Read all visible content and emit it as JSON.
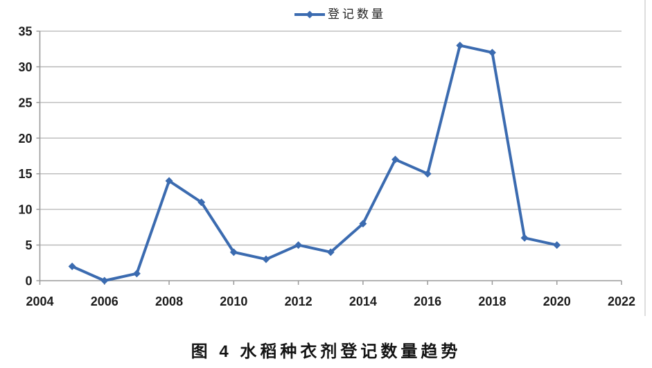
{
  "figure": {
    "caption": "图 4 水稻种衣剂登记数量趋势",
    "legend_label": "登记数量"
  },
  "colors": {
    "line": "#3b6bb0",
    "grid": "#b3b3b3",
    "axis": "#9a9a9a",
    "text": "#1c1c1c"
  },
  "chart_data": {
    "type": "line",
    "title": "图 4 水稻种衣剂登记数量趋势",
    "legend": [
      "登记数量"
    ],
    "x": [
      2005,
      2006,
      2007,
      2008,
      2009,
      2010,
      2011,
      2012,
      2013,
      2014,
      2015,
      2016,
      2017,
      2018,
      2019,
      2020
    ],
    "series": [
      {
        "name": "登记数量",
        "values": [
          2,
          0,
          1,
          14,
          11,
          4,
          3,
          5,
          4,
          8,
          17,
          15,
          33,
          32,
          6,
          5
        ]
      }
    ],
    "xlabel": "",
    "ylabel": "",
    "xlim": [
      2004,
      2022
    ],
    "ylim": [
      0,
      35
    ],
    "x_ticks": [
      2004,
      2006,
      2008,
      2010,
      2012,
      2014,
      2016,
      2018,
      2020,
      2022
    ],
    "y_ticks": [
      0,
      5,
      10,
      15,
      20,
      25,
      30,
      35
    ],
    "grid": true,
    "legend_position": "top-center",
    "marker": "diamond"
  }
}
